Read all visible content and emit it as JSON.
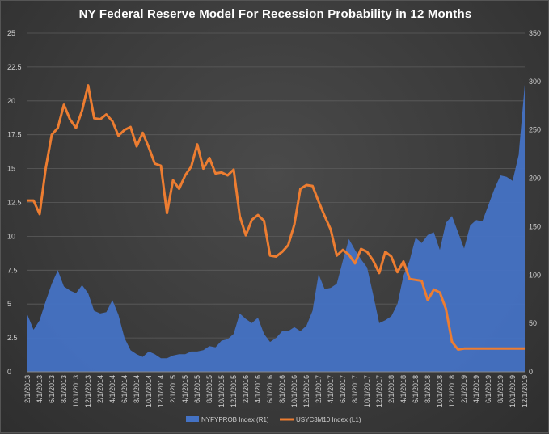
{
  "chart_data": {
    "type": "area+line",
    "title": "NY Federal Reserve Model For Recession Probability in 12 Months",
    "left_axis": {
      "ylim": [
        0,
        25
      ],
      "ticks": [
        "0",
        "2.5",
        "5",
        "7.5",
        "10",
        "12.5",
        "15",
        "17.5",
        "20",
        "22.5",
        "25"
      ]
    },
    "right_axis": {
      "ylim": [
        0,
        350
      ],
      "ticks": [
        "0",
        "50",
        "100",
        "150",
        "200",
        "250",
        "300",
        "350"
      ]
    },
    "x_ticks": [
      "2/1/2013",
      "4/1/2013",
      "6/1/2013",
      "8/1/2013",
      "10/1/2013",
      "12/1/2013",
      "2/1/2014",
      "4/1/2014",
      "6/1/2014",
      "8/1/2014",
      "10/1/2014",
      "12/1/2014",
      "2/1/2015",
      "4/1/2015",
      "6/1/2015",
      "8/1/2015",
      "10/1/2015",
      "12/1/2015",
      "2/1/2016",
      "4/1/2016",
      "6/1/2016",
      "8/1/2016",
      "10/1/2016",
      "12/1/2016",
      "2/1/2017",
      "4/1/2017",
      "6/1/2017",
      "8/1/2017",
      "10/1/2017",
      "12/1/2017",
      "2/1/2018",
      "4/1/2018",
      "6/1/2018",
      "8/1/2018",
      "10/1/2018",
      "12/1/2018",
      "2/1/2019",
      "4/1/2019",
      "6/1/2019",
      "8/1/2019",
      "10/1/2019",
      "12/1/2019"
    ],
    "grid": true,
    "legend_position": "bottom",
    "series": [
      {
        "name": "NYFYPROB Index  (R1)",
        "type": "area",
        "axis": "left",
        "color": "#4472c4",
        "values": [
          4.2,
          3.1,
          3.8,
          5.2,
          6.5,
          7.5,
          6.3,
          6.0,
          5.8,
          6.4,
          5.8,
          4.5,
          4.3,
          4.4,
          5.3,
          4.2,
          2.5,
          1.6,
          1.3,
          1.1,
          1.5,
          1.3,
          1.0,
          1.0,
          1.2,
          1.3,
          1.3,
          1.5,
          1.5,
          1.6,
          1.9,
          1.8,
          2.3,
          2.4,
          2.8,
          4.3,
          3.9,
          3.6,
          4.0,
          2.8,
          2.2,
          2.5,
          3.0,
          3.0,
          3.3,
          3.0,
          3.4,
          4.5,
          7.2,
          6.1,
          6.2,
          6.5,
          8.2,
          9.8,
          9.0,
          8.3,
          7.7,
          5.7,
          3.6,
          3.8,
          4.1,
          5.0,
          7.1,
          8.2,
          9.9,
          9.5,
          10.1,
          10.3,
          9.0,
          11.0,
          11.5,
          10.3,
          9.1,
          10.8,
          11.2,
          11.1,
          12.3,
          13.5,
          14.5,
          14.4,
          14.1,
          16.0,
          21.2
        ]
      },
      {
        "name": "USYC3M10 Index  (L1)",
        "type": "line",
        "axis": "right",
        "color": "#ed7d31",
        "values": [
          177,
          177,
          163,
          210,
          245,
          252,
          276,
          261,
          252,
          270,
          296,
          262,
          261,
          266,
          259,
          244,
          250,
          253,
          233,
          247,
          232,
          215,
          213,
          164,
          198,
          189,
          203,
          212,
          235,
          210,
          221,
          205,
          206,
          203,
          209,
          161,
          141,
          157,
          162,
          156,
          120,
          119,
          124,
          131,
          152,
          189,
          193,
          192,
          176,
          161,
          147,
          120,
          126,
          121,
          112,
          127,
          124,
          115,
          102,
          124,
          119,
          103,
          114,
          96,
          95,
          94,
          74,
          85,
          82,
          65,
          31,
          23,
          24,
          24,
          24,
          24,
          24,
          24,
          24,
          24,
          24,
          24,
          24
        ]
      }
    ]
  }
}
